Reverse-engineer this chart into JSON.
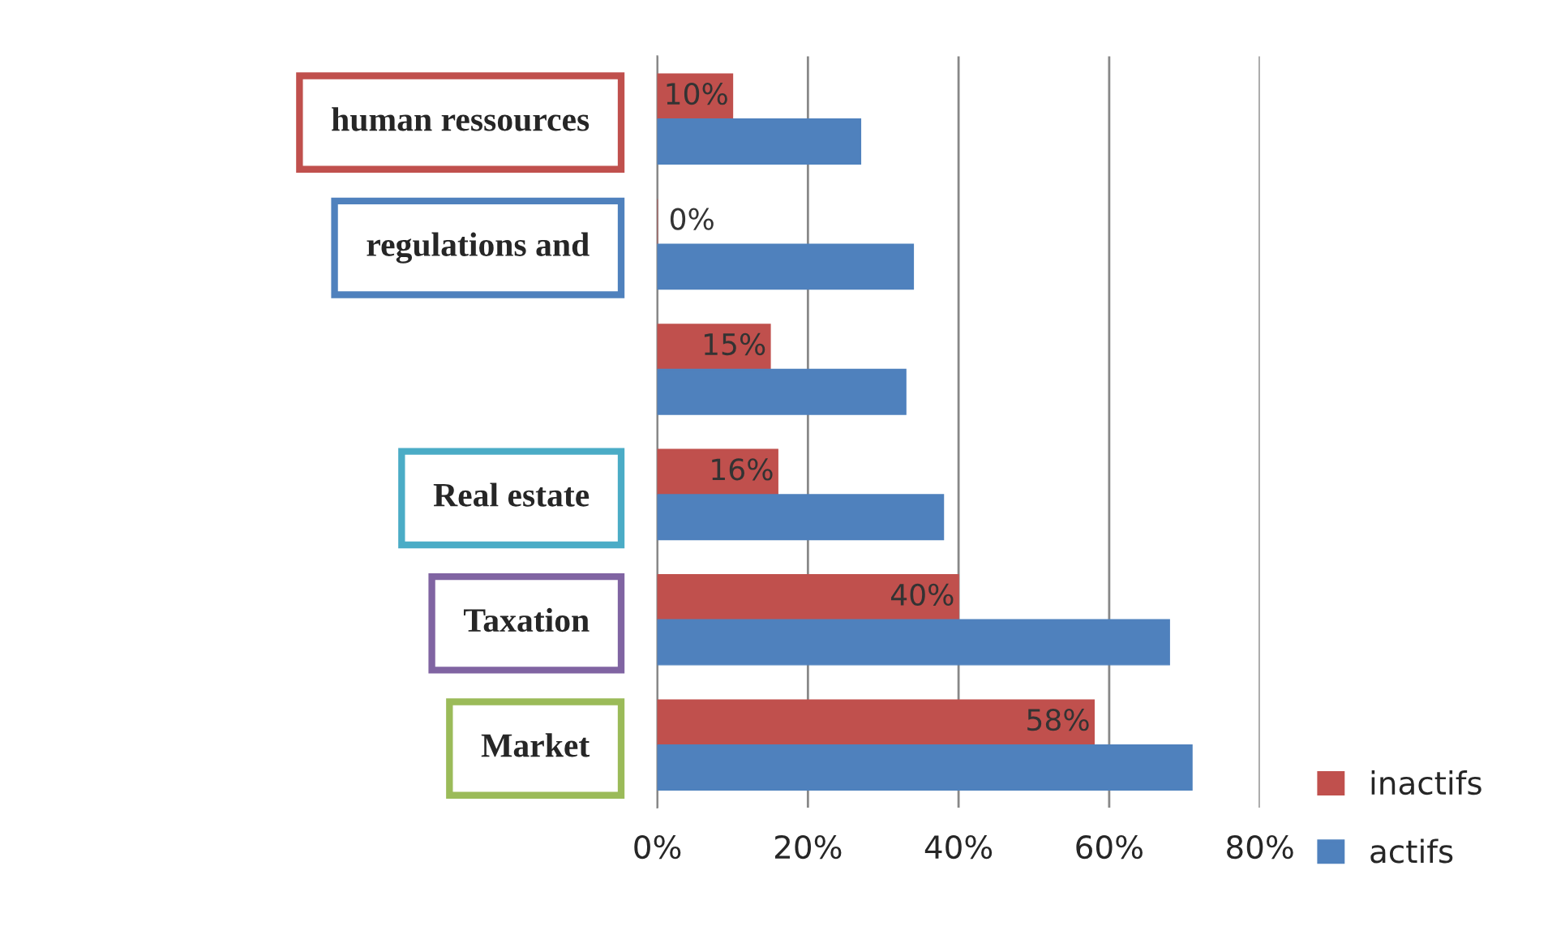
{
  "chart_data": {
    "type": "bar",
    "orientation": "horizontal",
    "categories": [
      "human ressources",
      "regulations and",
      null,
      "Real estate",
      "Taxation",
      "Market"
    ],
    "series": [
      {
        "name": "inactifs",
        "color": "#c0504d",
        "values": [
          10,
          0,
          15,
          16,
          40,
          58
        ],
        "value_labels": [
          "10%",
          "0%",
          "15%",
          "16%",
          "40%",
          "58%"
        ]
      },
      {
        "name": "actifs",
        "color": "#4f81bd",
        "values": [
          27,
          34,
          33,
          38,
          68,
          71
        ]
      }
    ],
    "xlim": [
      0,
      80
    ],
    "xticks": [
      {
        "value": 0,
        "label": "0%"
      },
      {
        "value": 20,
        "label": "20%"
      },
      {
        "value": 40,
        "label": "40%"
      },
      {
        "value": 60,
        "label": "60%"
      },
      {
        "value": 80,
        "label": "80%"
      }
    ],
    "grid": "x",
    "legend": "bottom right"
  }
}
